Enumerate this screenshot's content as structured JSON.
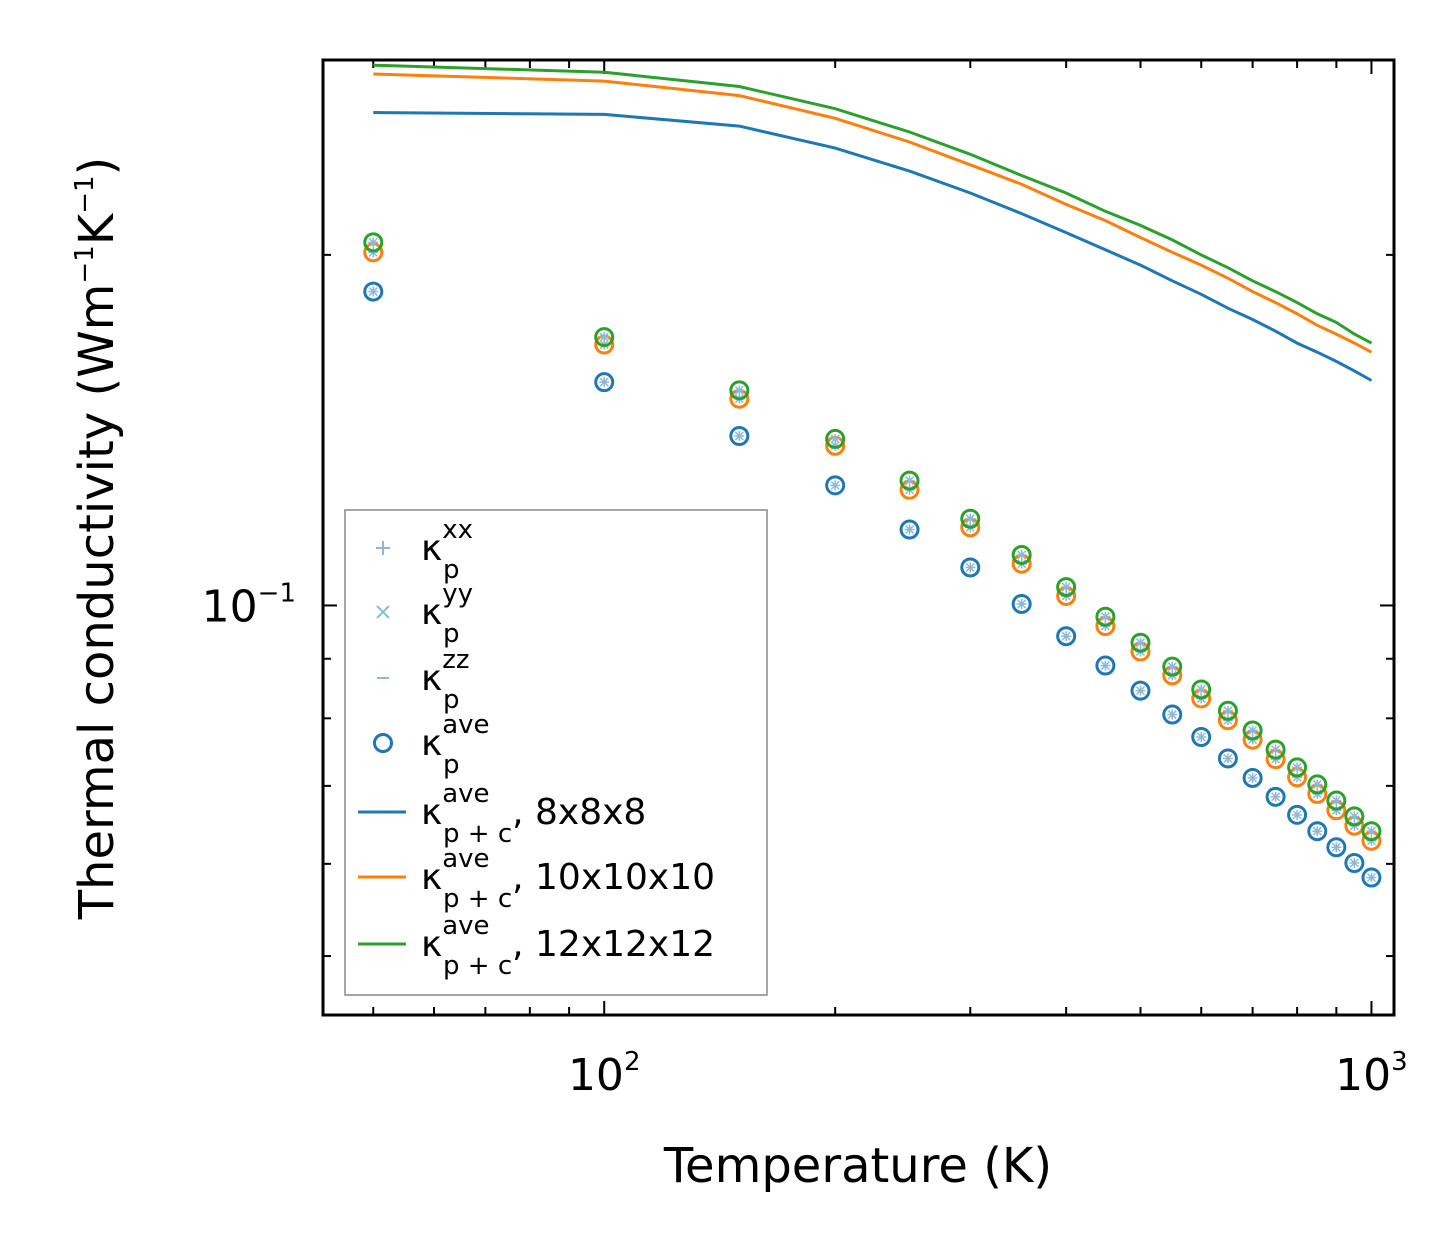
{
  "chart_data": {
    "type": "line+scatter",
    "x_scale": "log",
    "y_scale": "log",
    "xlabel": "Temperature (K)",
    "ylabel": {
      "main": "Thermal conductivity (Wm",
      "exp1": "−1",
      "mid": "K",
      "exp2": "−1",
      "end": ")"
    },
    "xlim": [
      43,
      1070
    ],
    "ylim": [
      0.0445,
      0.294
    ],
    "x_ticks": [
      {
        "value": 100,
        "base": "10",
        "exp": "2"
      },
      {
        "value": 1000,
        "base": "10",
        "exp": "3"
      }
    ],
    "y_ticks": [
      {
        "value": 0.1,
        "base": "10",
        "exp": "−1"
      }
    ],
    "x": [
      50,
      100,
      150,
      200,
      250,
      300,
      350,
      400,
      450,
      500,
      550,
      600,
      650,
      700,
      750,
      800,
      850,
      900,
      950,
      1000
    ],
    "colors": {
      "blue": "#1f77b4",
      "orange": "#ff7f0e",
      "green": "#2ca02c",
      "light_blue": "#8fb8d8"
    },
    "series": [
      {
        "name": "8x8x8",
        "color": "#1f77b4",
        "kappa_p_ave": [
          0.186,
          0.1555,
          0.1398,
          0.1268,
          0.1162,
          0.1078,
          0.1003,
          0.0941,
          0.0888,
          0.0845,
          0.0806,
          0.0771,
          0.0739,
          0.0711,
          0.0685,
          0.0661,
          0.064,
          0.062,
          0.0601,
          0.0584
        ],
        "kappa_pc_ave": [
          0.265,
          0.264,
          0.258,
          0.247,
          0.236,
          0.226,
          0.217,
          0.209,
          0.202,
          0.196,
          0.19,
          0.185,
          0.18,
          0.176,
          0.172,
          0.168,
          0.165,
          0.162,
          0.159,
          0.156
        ]
      },
      {
        "name": "10x10x10",
        "color": "#ff7f0e",
        "kappa_p_ave": [
          0.201,
          0.1675,
          0.1505,
          0.1371,
          0.1257,
          0.1167,
          0.1086,
          0.1019,
          0.096,
          0.0913,
          0.0871,
          0.0832,
          0.0797,
          0.0767,
          0.0738,
          0.0712,
          0.0689,
          0.0667,
          0.0647,
          0.0628
        ],
        "kappa_pc_ave": [
          0.286,
          0.282,
          0.274,
          0.262,
          0.25,
          0.239,
          0.23,
          0.221,
          0.214,
          0.207,
          0.201,
          0.196,
          0.191,
          0.186,
          0.182,
          0.178,
          0.174,
          0.171,
          0.168,
          0.165
        ]
      },
      {
        "name": "12x12x12",
        "color": "#2ca02c",
        "kappa_p_ave": [
          0.205,
          0.17,
          0.153,
          0.139,
          0.128,
          0.1187,
          0.1105,
          0.1037,
          0.0978,
          0.0929,
          0.0886,
          0.0847,
          0.0812,
          0.0781,
          0.0752,
          0.0726,
          0.0702,
          0.068,
          0.0659,
          0.064
        ],
        "kappa_pc_ave": [
          0.291,
          0.287,
          0.279,
          0.267,
          0.255,
          0.244,
          0.234,
          0.226,
          0.218,
          0.212,
          0.206,
          0.2,
          0.195,
          0.19,
          0.186,
          0.182,
          0.178,
          0.175,
          0.171,
          0.168
        ]
      }
    ],
    "legend": {
      "placement": "lower-left",
      "entries": [
        {
          "marker": "plus",
          "color": "#8fb8d8",
          "base": "κ",
          "sub": "p",
          "sup": "xx",
          "suffix": ""
        },
        {
          "marker": "cross",
          "color": "#8fb8d8",
          "base": "κ",
          "sub": "p",
          "sup": "yy",
          "suffix": ""
        },
        {
          "marker": "dash",
          "color": "#8fb8d8",
          "base": "κ",
          "sub": "p",
          "sup": "zz",
          "suffix": ""
        },
        {
          "marker": "circle",
          "color": "#1f77b4",
          "base": "κ",
          "sub": "p",
          "sup": "ave",
          "suffix": ""
        },
        {
          "marker": "line",
          "color": "#1f77b4",
          "base": "κ",
          "sub": "p + c",
          "sup": "ave",
          "suffix": ", 8x8x8"
        },
        {
          "marker": "line",
          "color": "#ff7f0e",
          "base": "κ",
          "sub": "p + c",
          "sup": "ave",
          "suffix": ", 10x10x10"
        },
        {
          "marker": "line",
          "color": "#2ca02c",
          "base": "κ",
          "sub": "p + c",
          "sup": "ave",
          "suffix": ", 12x12x12"
        }
      ]
    }
  }
}
